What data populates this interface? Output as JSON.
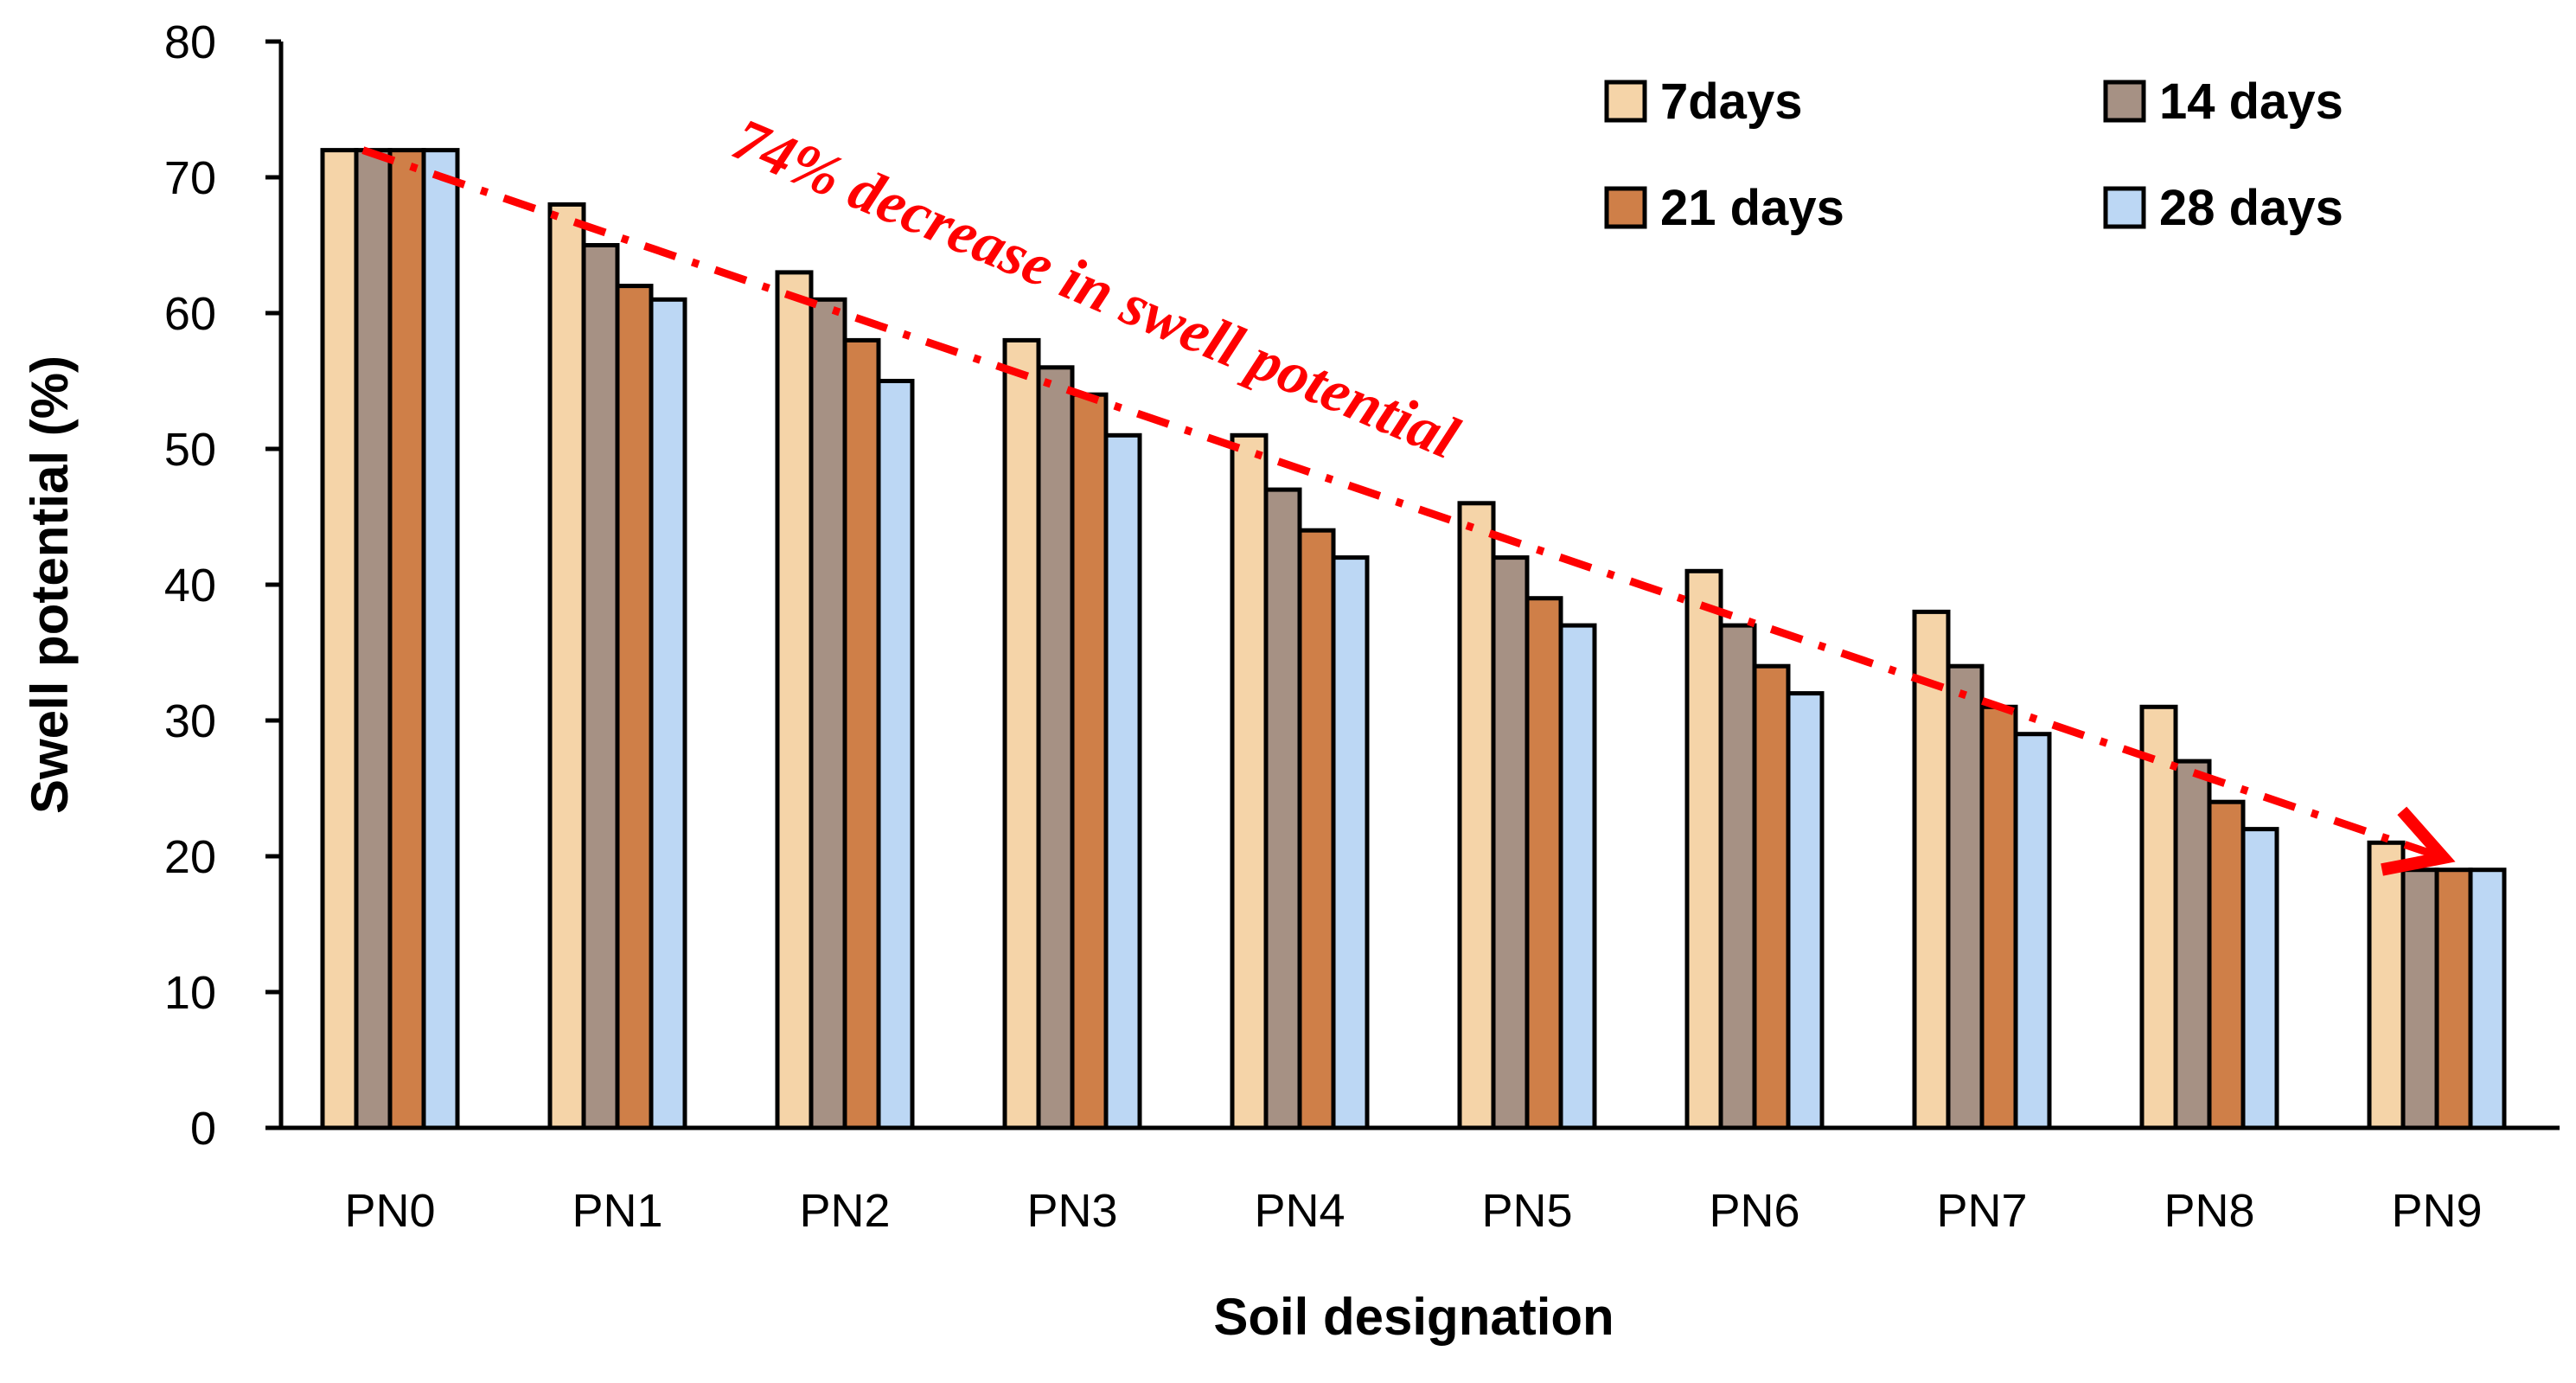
{
  "chart_data": {
    "type": "bar",
    "title": "",
    "xlabel": "Soil designation",
    "ylabel": "Swell potential (%)",
    "ylim": [
      0,
      80
    ],
    "yticks": [
      0,
      10,
      20,
      30,
      40,
      50,
      60,
      70,
      80
    ],
    "grid": false,
    "legend_position": "top-right",
    "categories": [
      "PN0",
      "PN1",
      "PN2",
      "PN3",
      "PN4",
      "PN5",
      "PN6",
      "PN7",
      "PN8",
      "PN9"
    ],
    "series": [
      {
        "name": "7days",
        "color": "#f5d4a8",
        "values": [
          72,
          68,
          63,
          58,
          51,
          46,
          41,
          38,
          31,
          21
        ]
      },
      {
        "name": "14 days",
        "color": "#a69184",
        "values": [
          72,
          65,
          61,
          56,
          47,
          42,
          37,
          34,
          27,
          19
        ]
      },
      {
        "name": "21 days",
        "color": "#cf7f48",
        "values": [
          72,
          62,
          58,
          54,
          44,
          39,
          34,
          31,
          24,
          19
        ]
      },
      {
        "name": "28 days",
        "color": "#bcd7f4",
        "values": [
          72,
          61,
          55,
          51,
          42,
          37,
          32,
          29,
          22,
          19
        ]
      }
    ],
    "annotation": {
      "text": "74% decrease in swell potential",
      "color": "#ff0000",
      "from": {
        "category": "PN0",
        "value": 72
      },
      "to": {
        "category": "PN9",
        "value": 19
      }
    }
  }
}
